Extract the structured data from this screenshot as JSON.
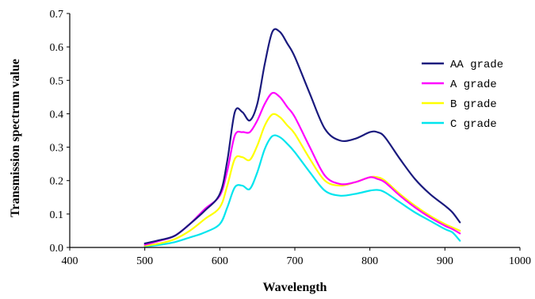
{
  "chart_data": {
    "type": "line",
    "title": "",
    "xlabel": "Wavelength",
    "ylabel": "Transmission spectrum value",
    "xlim": [
      400,
      1000
    ],
    "ylim": [
      0,
      0.7
    ],
    "x_ticks": [
      400,
      500,
      600,
      700,
      800,
      900,
      1000
    ],
    "y_ticks": [
      "0.0",
      "0.1",
      "0.2",
      "0.3",
      "0.4",
      "0.5",
      "0.6",
      "0.7"
    ],
    "grid": false,
    "legend_position": "right",
    "x": [
      500,
      520,
      540,
      560,
      580,
      600,
      610,
      620,
      630,
      640,
      650,
      660,
      670,
      680,
      690,
      700,
      720,
      740,
      760,
      780,
      800,
      810,
      820,
      840,
      860,
      880,
      900,
      910,
      920
    ],
    "series": [
      {
        "name": "AA grade",
        "color": "#1a1a7e",
        "values": [
          0.012,
          0.022,
          0.035,
          0.07,
          0.11,
          0.16,
          0.26,
          0.405,
          0.405,
          0.38,
          0.43,
          0.55,
          0.645,
          0.645,
          0.61,
          0.57,
          0.46,
          0.355,
          0.32,
          0.325,
          0.345,
          0.345,
          0.33,
          0.265,
          0.205,
          0.16,
          0.125,
          0.105,
          0.075
        ]
      },
      {
        "name": "A grade",
        "color": "#ff00ff",
        "values": [
          0.008,
          0.02,
          0.035,
          0.07,
          0.115,
          0.155,
          0.23,
          0.335,
          0.345,
          0.345,
          0.38,
          0.43,
          0.462,
          0.45,
          0.42,
          0.39,
          0.3,
          0.215,
          0.19,
          0.195,
          0.21,
          0.205,
          0.195,
          0.155,
          0.12,
          0.09,
          0.065,
          0.055,
          0.042
        ]
      },
      {
        "name": "B grade",
        "color": "#ffff00",
        "values": [
          0.005,
          0.012,
          0.025,
          0.05,
          0.085,
          0.12,
          0.185,
          0.265,
          0.27,
          0.262,
          0.305,
          0.365,
          0.398,
          0.39,
          0.365,
          0.34,
          0.265,
          0.2,
          0.185,
          0.195,
          0.21,
          0.21,
          0.2,
          0.16,
          0.125,
          0.095,
          0.07,
          0.06,
          0.05
        ]
      },
      {
        "name": "C grade",
        "color": "#00e5ee",
        "values": [
          0.003,
          0.008,
          0.016,
          0.03,
          0.045,
          0.07,
          0.12,
          0.18,
          0.185,
          0.175,
          0.225,
          0.295,
          0.333,
          0.33,
          0.31,
          0.285,
          0.225,
          0.17,
          0.155,
          0.16,
          0.17,
          0.172,
          0.165,
          0.135,
          0.105,
          0.08,
          0.055,
          0.045,
          0.02
        ]
      }
    ]
  }
}
